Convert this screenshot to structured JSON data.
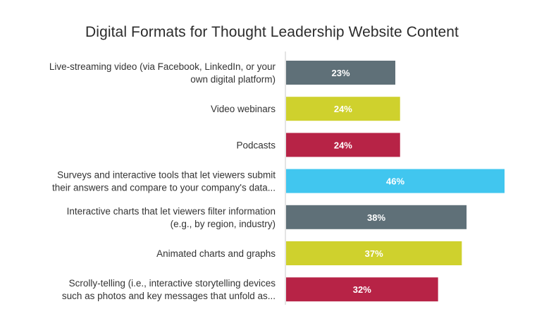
{
  "chart_data": {
    "type": "bar",
    "orientation": "horizontal",
    "title": "Digital Formats for Thought Leadership Website Content",
    "xlabel": "",
    "ylabel": "",
    "xlim": [
      0,
      46
    ],
    "grid": false,
    "legend": "none",
    "categories": [
      [
        "Live-streaming video (via Facebook, LinkedIn, or your",
        "own digital platform)"
      ],
      [
        "Video webinars"
      ],
      [
        "Podcasts"
      ],
      [
        "Surveys and interactive tools that let viewers submit",
        "their answers and compare to your company's data..."
      ],
      [
        "Interactive charts that let viewers filter information",
        "(e.g., by region, industry)"
      ],
      [
        "Animated charts and graphs"
      ],
      [
        "Scrolly-telling (i.e., interactive storytelling devices",
        "such as photos and key messages that unfold as..."
      ]
    ],
    "values": [
      23,
      24,
      24,
      46,
      38,
      37,
      32
    ],
    "value_labels": [
      "23%",
      "24%",
      "24%",
      "46%",
      "38%",
      "37%",
      "32%"
    ],
    "colors": [
      "#5f7078",
      "#cfd12d",
      "#b72346",
      "#41c6ef",
      "#5f7078",
      "#cfd12d",
      "#b72346"
    ]
  },
  "axis_color": "#c8c8c8"
}
